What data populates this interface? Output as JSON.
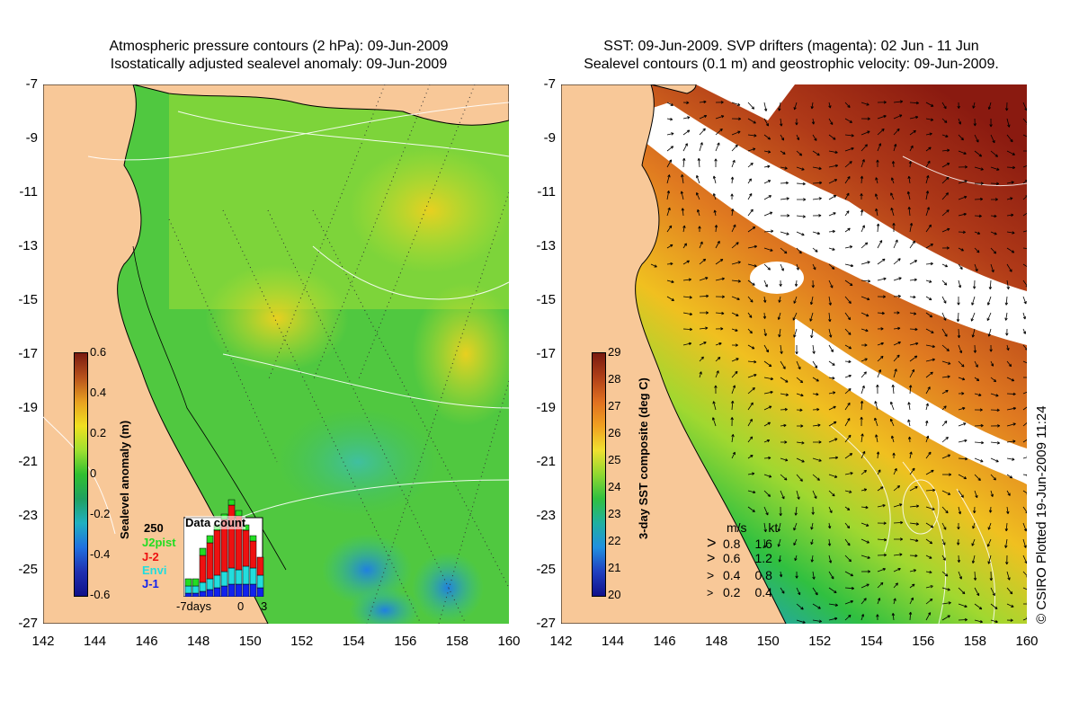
{
  "left_panel": {
    "title_line1": "Atmospheric pressure contours (2 hPa): 09-Jun-2009",
    "title_line2": "Isostatically adjusted sealevel anomaly: 09-Jun-2009",
    "colorbar": {
      "title": "Sealevel anomaly (m)",
      "ticks": [
        "0.6",
        "0.4",
        "0.2",
        "0",
        "-0.2",
        "-0.4",
        "-0.6"
      ],
      "colors": [
        "#7a1a10",
        "#b8521c",
        "#e8a020",
        "#f0e020",
        "#a0e030",
        "#30c030",
        "#20a060",
        "#20b0c0",
        "#2070e0",
        "#2030b0",
        "#10108a"
      ]
    },
    "data_count": {
      "title": "Data count",
      "max_label": "250",
      "missions": [
        {
          "name": "J2pist",
          "color": "#22dd22"
        },
        {
          "name": "J-2",
          "color": "#ee1111"
        },
        {
          "name": "Envi",
          "color": "#22dddd"
        },
        {
          "name": "J-1",
          "color": "#1122ee"
        }
      ],
      "x_labels": [
        "-7days",
        "0",
        "3"
      ]
    }
  },
  "right_panel": {
    "title_line1": "SST: 09-Jun-2009. SVP drifters (magenta): 02 Jun - 11 Jun",
    "title_line2": "Sealevel contours (0.1 m) and geostrophic velocity: 09-Jun-2009.",
    "colorbar": {
      "title": "3-day SST composite (deg C)",
      "ticks": [
        "29",
        "28",
        "27",
        "26",
        "25",
        "24",
        "23",
        "22",
        "21",
        "20"
      ],
      "colors": [
        "#7a1a10",
        "#b04018",
        "#e07020",
        "#f0a020",
        "#f0e030",
        "#90d830",
        "#30c040",
        "#20b0a0",
        "#2090e0",
        "#2040c0",
        "#10108a"
      ]
    },
    "speed_legend": {
      "header_ms": "m/s",
      "header_kt": "kt",
      "rows": [
        {
          "ms": "0.8",
          "kt": "1.6"
        },
        {
          "ms": "0.6",
          "kt": "1.2"
        },
        {
          "ms": "0.4",
          "kt": "0.8"
        },
        {
          "ms": "0.2",
          "kt": "0.4"
        }
      ]
    }
  },
  "axes": {
    "y_labels": [
      "-7",
      "-9",
      "-11",
      "-13",
      "-15",
      "-17",
      "-19",
      "-21",
      "-23",
      "-25",
      "-27"
    ],
    "x_labels": [
      "142",
      "144",
      "146",
      "148",
      "150",
      "152",
      "154",
      "156",
      "158",
      "160"
    ]
  },
  "credit": "© CSIRO Plotted 19-Jun-2009 11:24",
  "colors": {
    "land": "#f8c898",
    "coast": "#000000",
    "sealevel_green": "#40c040",
    "sst_white": "#ffffff"
  }
}
